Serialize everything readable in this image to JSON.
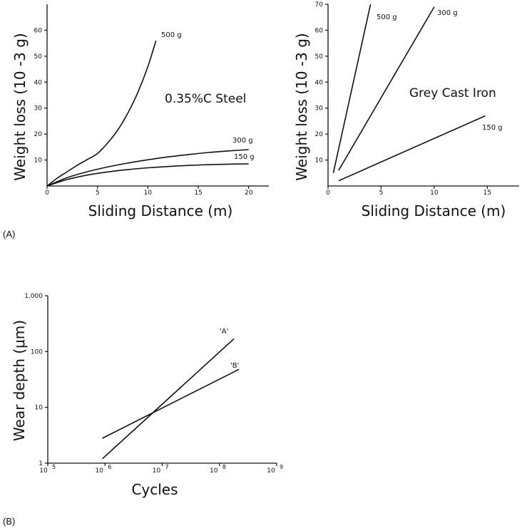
{
  "panel_labels": [
    "(A)",
    "(B)"
  ],
  "chart_data": [
    {
      "type": "line",
      "panel": "(A)",
      "inset_title": "0.35%C Steel",
      "xlabel": "Sliding Distance (m)",
      "ylabel": "Weight loss (10 -3 g)",
      "xlim": [
        0,
        22
      ],
      "ylim": [
        0,
        70
      ],
      "xticks": [
        0,
        5,
        10,
        15,
        20
      ],
      "yticks": [
        10,
        20,
        30,
        40,
        50,
        60
      ],
      "xtick_labels": [
        "0",
        "5",
        "10",
        "15",
        "20"
      ],
      "ytick_labels": [
        "10",
        "20",
        "30",
        "40",
        "50",
        "60"
      ],
      "grid": false,
      "series": [
        {
          "name": "500 g",
          "x": [
            0,
            1,
            2,
            3,
            4,
            5,
            6,
            7,
            8,
            9,
            10,
            10.8
          ],
          "y": [
            0,
            3,
            5.5,
            8,
            10.2,
            12.5,
            16.5,
            21.5,
            28,
            36,
            46,
            56
          ]
        },
        {
          "name": "300 g",
          "x": [
            0,
            2,
            4,
            6,
            8,
            10,
            12,
            14,
            16,
            18,
            20
          ],
          "y": [
            0,
            3.2,
            5.5,
            7.3,
            8.8,
            10.1,
            11.2,
            12.1,
            12.9,
            13.5,
            14
          ]
        },
        {
          "name": "150 g",
          "x": [
            0,
            2,
            4,
            6,
            8,
            10,
            12,
            14,
            16,
            18,
            20
          ],
          "y": [
            0,
            2.5,
            4.2,
            5.4,
            6.3,
            7,
            7.5,
            7.9,
            8.2,
            8.4,
            8.5
          ]
        }
      ]
    },
    {
      "type": "line",
      "panel": "(A)",
      "inset_title": "Grey Cast Iron",
      "xlabel": "Sliding Distance (m)",
      "ylabel": "Weight loss (10 -3 g)",
      "xlim": [
        0,
        18
      ],
      "ylim": [
        0,
        70
      ],
      "xticks": [
        0,
        5,
        10,
        15
      ],
      "yticks": [
        10,
        20,
        30,
        40,
        50,
        60,
        70
      ],
      "xtick_labels": [
        "0",
        "5",
        "10",
        "15"
      ],
      "ytick_labels": [
        "10",
        "20",
        "30",
        "40",
        "50",
        "60",
        "70"
      ],
      "grid": false,
      "series": [
        {
          "name": "500 g",
          "x": [
            0.5,
            4
          ],
          "y": [
            5,
            70
          ]
        },
        {
          "name": "300 g",
          "x": [
            1,
            10
          ],
          "y": [
            6,
            69
          ]
        },
        {
          "name": "150 g",
          "x": [
            1,
            14.8
          ],
          "y": [
            2,
            27
          ]
        }
      ]
    },
    {
      "type": "line",
      "panel": "(B)",
      "xlabel": "Cycles",
      "ylabel": "Wear depth (μm)",
      "xscale": "log",
      "yscale": "log",
      "xlim": [
        100000,
        1000000000
      ],
      "ylim": [
        1,
        1000
      ],
      "xticks": [
        100000,
        1000000,
        10000000,
        100000000,
        1000000000
      ],
      "xtick_base": "10",
      "xtick_exponents": [
        "5",
        "6",
        "7",
        "8",
        "9"
      ],
      "yticks": [
        1,
        10,
        100,
        1000
      ],
      "ytick_labels": [
        "1",
        "10",
        "100",
        "1,000"
      ],
      "grid": false,
      "series": [
        {
          "name": "'A'",
          "x": [
            900000,
            180000000
          ],
          "y": [
            1.2,
            170
          ]
        },
        {
          "name": "'B'",
          "x": [
            900000,
            220000000
          ],
          "y": [
            2.8,
            48
          ]
        }
      ]
    }
  ]
}
